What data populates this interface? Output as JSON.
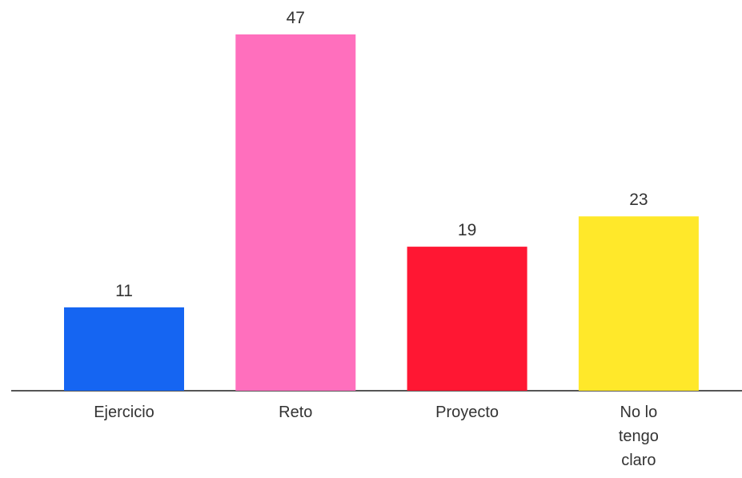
{
  "chart_data": {
    "type": "bar",
    "categories": [
      "Ejercicio",
      "Reto",
      "Proyecto",
      "No lo tengo claro"
    ],
    "values": [
      11,
      47,
      19,
      23
    ],
    "colors": [
      "#1565f2",
      "#ff6fbd",
      "#ff1733",
      "#ffe82a"
    ]
  }
}
